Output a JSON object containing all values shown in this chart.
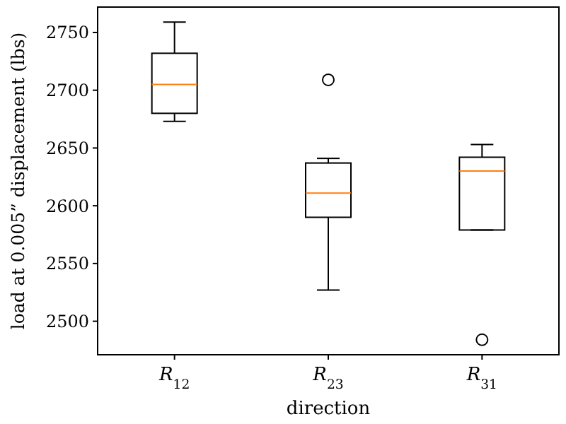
{
  "chart_data": {
    "type": "box",
    "xlabel": "direction",
    "ylabel": "load at 0.005” displacement (lbs)",
    "categories": [
      "R$_{12}$",
      "R$_{23}$",
      "R$_{31}$"
    ],
    "boxes": [
      {
        "low": 2673,
        "q1": 2680,
        "median": 2705,
        "q3": 2732,
        "high": 2759
      },
      {
        "low": 2527,
        "q1": 2590,
        "median": 2611,
        "q3": 2637,
        "high": 2641,
        "outliers": [
          2709
        ]
      },
      {
        "low": 2579,
        "q1": 2579,
        "median": 2630,
        "q3": 2642,
        "high": 2653,
        "outliers": [
          2484
        ]
      }
    ],
    "color": "#000000",
    "ylim": [
      2471,
      2772
    ],
    "yticks": [
      2500,
      2550,
      2600,
      2650,
      2700,
      2750
    ],
    "grid": false
  }
}
